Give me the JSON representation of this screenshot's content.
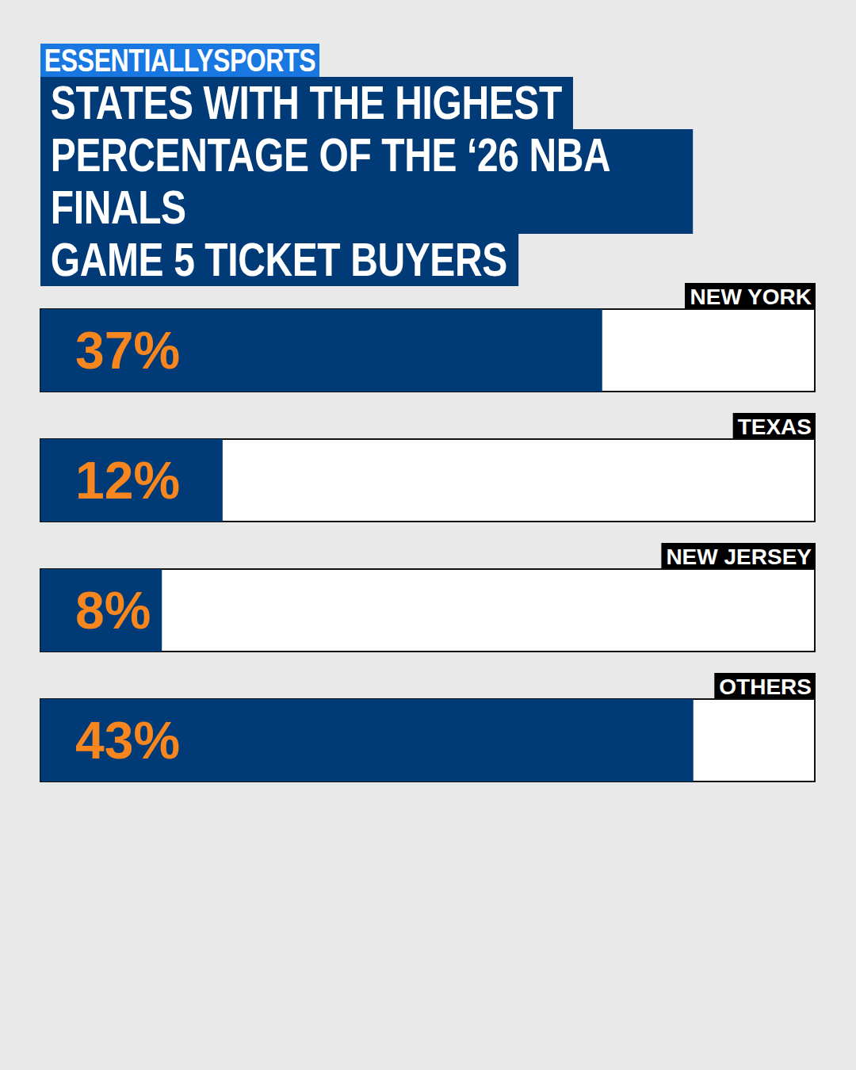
{
  "chart_data": {
    "type": "bar",
    "orientation": "horizontal",
    "title": "STATES WITH THE HIGHEST\nPERCENTAGE OF THE ‘26 NBA FINALS\nGAME 5 TICKET BUYERS",
    "annotations": [
      "ESSENTIALLYSPORTS"
    ],
    "categories": [
      "NEW YORK",
      "TEXAS",
      "NEW JERSEY",
      "OTHERS"
    ],
    "values": [
      37,
      12,
      8,
      43
    ],
    "value_labels": [
      "37%",
      "12%",
      "8%",
      "43%"
    ],
    "color": "#003b78",
    "xlim": [
      0,
      51
    ],
    "xticks": [],
    "grid": false,
    "tick_labels": false,
    "data_labels": true
  }
}
